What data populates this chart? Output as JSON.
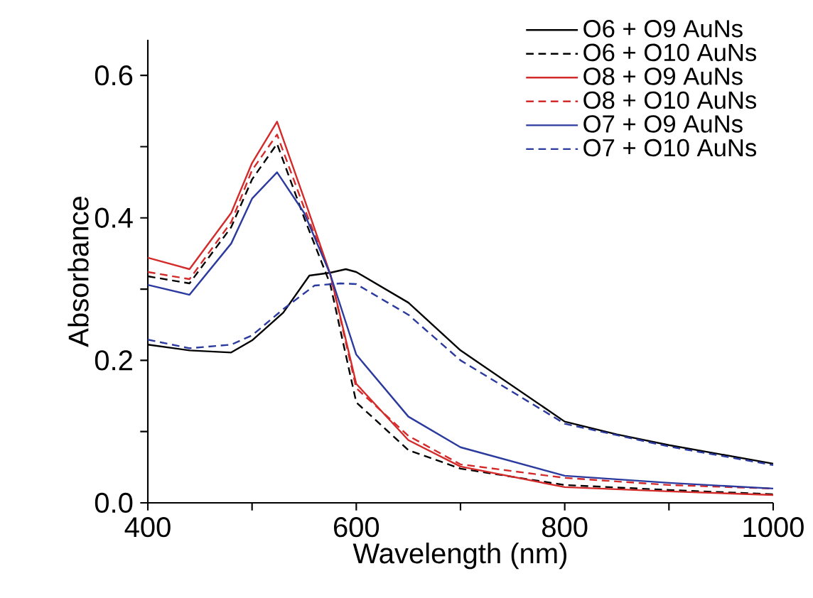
{
  "chart_data": {
    "type": "line",
    "xlabel": "Wavelength (nm)",
    "ylabel": "Absorbance",
    "xlim": [
      400,
      1000
    ],
    "ylim": [
      0,
      0.65
    ],
    "xticks": [
      400,
      {
        "value": 500,
        "label": null
      },
      600,
      {
        "value": 700,
        "label": null
      },
      800,
      {
        "value": 900,
        "label": null
      },
      1000
    ],
    "yticks": [
      {
        "value": 0.0,
        "label": "0.0"
      },
      {
        "value": 0.1,
        "label": null
      },
      0.2,
      {
        "value": 0.3,
        "label": null
      },
      0.4,
      {
        "value": 0.5,
        "label": null
      },
      0.6
    ],
    "legend": "top right",
    "series": [
      {
        "name": "O6 + O9 AuNs",
        "color": "#000000",
        "line_style": "solid",
        "x": [
          400,
          440,
          480,
          500,
          530,
          555,
          575,
          590,
          600,
          650,
          700,
          800,
          850,
          900,
          1000
        ],
        "values": [
          0.222,
          0.214,
          0.211,
          0.228,
          0.267,
          0.319,
          0.323,
          0.328,
          0.324,
          0.281,
          0.214,
          0.114,
          0.096,
          0.081,
          0.055
        ]
      },
      {
        "name": "O6 + O10 AuNs",
        "color": "#000000",
        "line_style": "dashed",
        "x": [
          400,
          440,
          480,
          500,
          524,
          550,
          575,
          600,
          650,
          700,
          800,
          900,
          1000
        ],
        "values": [
          0.318,
          0.308,
          0.387,
          0.454,
          0.504,
          0.4,
          0.307,
          0.141,
          0.074,
          0.048,
          0.025,
          0.018,
          0.012
        ]
      },
      {
        "name": "O8 + O9 AuNs",
        "color": "#d42a2a",
        "line_style": "solid",
        "x": [
          400,
          440,
          480,
          500,
          524,
          550,
          575,
          600,
          650,
          700,
          800,
          900,
          1000
        ],
        "values": [
          0.344,
          0.328,
          0.407,
          0.477,
          0.535,
          0.427,
          0.321,
          0.167,
          0.088,
          0.051,
          0.022,
          0.016,
          0.011
        ]
      },
      {
        "name": "O8 + O10 AuNs",
        "color": "#d42a2a",
        "line_style": "dashed",
        "x": [
          400,
          440,
          480,
          500,
          524,
          550,
          575,
          600,
          650,
          700,
          800,
          900,
          1000
        ],
        "values": [
          0.324,
          0.314,
          0.394,
          0.467,
          0.517,
          0.414,
          0.321,
          0.161,
          0.094,
          0.054,
          0.035,
          0.025,
          0.02
        ]
      },
      {
        "name": "O7 + O9 AuNs",
        "color": "#2b3a9e",
        "line_style": "solid",
        "x": [
          400,
          440,
          480,
          500,
          524,
          550,
          575,
          600,
          650,
          700,
          800,
          900,
          1000
        ],
        "values": [
          0.306,
          0.292,
          0.364,
          0.427,
          0.464,
          0.407,
          0.321,
          0.208,
          0.121,
          0.078,
          0.038,
          0.028,
          0.02
        ]
      },
      {
        "name": "O7 + O10 AuNs",
        "color": "#2b3a9e",
        "line_style": "dashed",
        "x": [
          400,
          440,
          480,
          500,
          530,
          560,
          585,
          600,
          650,
          700,
          800,
          900,
          1000
        ],
        "values": [
          0.229,
          0.217,
          0.222,
          0.235,
          0.272,
          0.305,
          0.308,
          0.307,
          0.264,
          0.2,
          0.111,
          0.079,
          0.053
        ]
      }
    ]
  }
}
